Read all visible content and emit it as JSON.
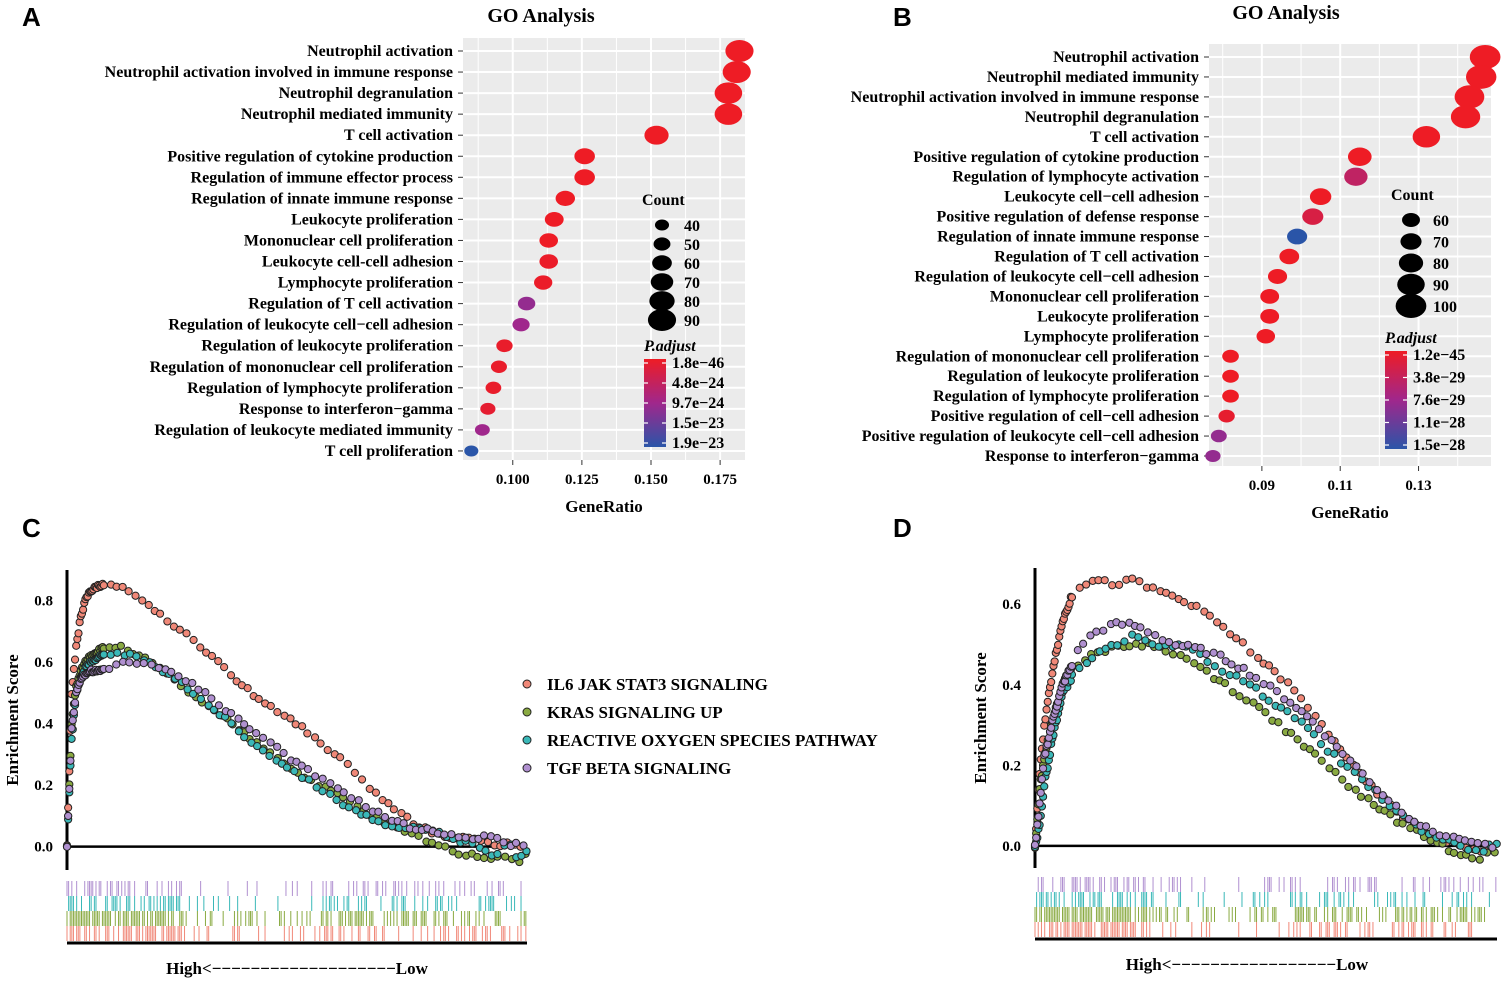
{
  "panel_letters": {
    "a": "A",
    "b": "B",
    "c": "C",
    "d": "D"
  },
  "chart_data": [
    {
      "panel": "A",
      "type": "scatter",
      "subtype": "dot plot",
      "title": "GO Analysis",
      "xlabel": "GeneRatio",
      "ylabel": "",
      "xlim": [
        0.082,
        0.184
      ],
      "xticks": [
        0.1,
        0.125,
        0.15,
        0.175
      ],
      "xtick_labels": [
        "0.100",
        "0.125",
        "0.150",
        "0.175"
      ],
      "terms": [
        {
          "label": "Neutrophil activation",
          "x": 0.182,
          "count": 90,
          "p_frac": 0.0
        },
        {
          "label": "Neutrophil activation involved in immune response",
          "x": 0.181,
          "count": 90,
          "p_frac": 0.0
        },
        {
          "label": "Neutrophil degranulation",
          "x": 0.178,
          "count": 88,
          "p_frac": 0.0
        },
        {
          "label": "Neutrophil mediated immunity",
          "x": 0.178,
          "count": 88,
          "p_frac": 0.0
        },
        {
          "label": "T cell activation",
          "x": 0.152,
          "count": 76,
          "p_frac": 0.0
        },
        {
          "label": "Positive regulation of cytokine production",
          "x": 0.126,
          "count": 63,
          "p_frac": 0.0
        },
        {
          "label": "Regulation of immune effector process",
          "x": 0.126,
          "count": 63,
          "p_frac": 0.0
        },
        {
          "label": "Regulation of innate immune response",
          "x": 0.119,
          "count": 59,
          "p_frac": 0.0
        },
        {
          "label": "Leukocyte proliferation",
          "x": 0.115,
          "count": 57,
          "p_frac": 0.0
        },
        {
          "label": "Mononuclear cell proliferation",
          "x": 0.113,
          "count": 56,
          "p_frac": 0.0
        },
        {
          "label": "Leukocyte cell-cell adhesion",
          "x": 0.113,
          "count": 56,
          "p_frac": 0.02
        },
        {
          "label": "Lymphocyte proliferation",
          "x": 0.111,
          "count": 55,
          "p_frac": 0.02
        },
        {
          "label": "Regulation of T cell activation",
          "x": 0.105,
          "count": 52,
          "p_frac": 0.55
        },
        {
          "label": "Regulation of leukocyte cell−cell adhesion",
          "x": 0.103,
          "count": 51,
          "p_frac": 0.5
        },
        {
          "label": "Regulation of leukocyte proliferation",
          "x": 0.097,
          "count": 48,
          "p_frac": 0.03
        },
        {
          "label": "Regulation of mononuclear cell proliferation",
          "x": 0.095,
          "count": 47,
          "p_frac": 0.03
        },
        {
          "label": "Regulation of lymphocyte proliferation",
          "x": 0.093,
          "count": 46,
          "p_frac": 0.03
        },
        {
          "label": "Response to interferon−gamma",
          "x": 0.091,
          "count": 44,
          "p_frac": 0.06
        },
        {
          "label": "Regulation of leukocyte mediated immunity",
          "x": 0.089,
          "count": 43,
          "p_frac": 0.5
        },
        {
          "label": "T cell proliferation",
          "x": 0.085,
          "count": 40,
          "p_frac": 1.0
        }
      ],
      "count_legend": {
        "title": "Count",
        "values": [
          40,
          50,
          60,
          70,
          80,
          90
        ],
        "labels": [
          "40",
          "50",
          "60",
          "70",
          "80",
          "90"
        ]
      },
      "color_legend": {
        "title": "P.adjust",
        "labels": [
          "1.8e−46",
          "4.8e−24",
          "9.7e−24",
          "1.5e−23",
          "1.9e−23"
        ]
      }
    },
    {
      "panel": "B",
      "type": "scatter",
      "subtype": "dot plot",
      "title": "GO Analysis",
      "xlabel": "GeneRatio",
      "ylabel": "",
      "xlim": [
        0.0765,
        0.1485
      ],
      "xticks": [
        0.09,
        0.11,
        0.13
      ],
      "xtick_labels": [
        "0.09",
        "0.11",
        "0.13"
      ],
      "terms": [
        {
          "label": "Neutrophil activation",
          "x": 0.147,
          "count": 100,
          "p_frac": 0.0
        },
        {
          "label": "Neutrophil mediated immunity",
          "x": 0.146,
          "count": 99,
          "p_frac": 0.0
        },
        {
          "label": "Neutrophil activation involved in immune response",
          "x": 0.143,
          "count": 97,
          "p_frac": 0.0
        },
        {
          "label": "Neutrophil degranulation",
          "x": 0.142,
          "count": 96,
          "p_frac": 0.0
        },
        {
          "label": "T cell activation",
          "x": 0.132,
          "count": 90,
          "p_frac": 0.0
        },
        {
          "label": "Positive regulation of cytokine production",
          "x": 0.115,
          "count": 78,
          "p_frac": 0.0
        },
        {
          "label": "Regulation of lymphocyte activation",
          "x": 0.114,
          "count": 77,
          "p_frac": 0.3
        },
        {
          "label": "Leukocyte cell−cell adhesion",
          "x": 0.105,
          "count": 71,
          "p_frac": 0.0
        },
        {
          "label": "Positive regulation of defense response",
          "x": 0.103,
          "count": 70,
          "p_frac": 0.15
        },
        {
          "label": "Regulation of innate immune response",
          "x": 0.099,
          "count": 67,
          "p_frac": 1.0
        },
        {
          "label": "Regulation of T cell activation",
          "x": 0.097,
          "count": 66,
          "p_frac": 0.0
        },
        {
          "label": "Regulation of leukocyte cell−cell adhesion",
          "x": 0.094,
          "count": 64,
          "p_frac": 0.0
        },
        {
          "label": "Mononuclear cell proliferation",
          "x": 0.092,
          "count": 63,
          "p_frac": 0.0
        },
        {
          "label": "Leukocyte proliferation",
          "x": 0.092,
          "count": 63,
          "p_frac": 0.0
        },
        {
          "label": "Lymphocyte proliferation",
          "x": 0.091,
          "count": 62,
          "p_frac": 0.0
        },
        {
          "label": "Regulation of mononuclear cell proliferation",
          "x": 0.082,
          "count": 56,
          "p_frac": 0.0
        },
        {
          "label": "Regulation of leukocyte proliferation",
          "x": 0.082,
          "count": 56,
          "p_frac": 0.0
        },
        {
          "label": "Regulation of lymphocyte proliferation",
          "x": 0.082,
          "count": 56,
          "p_frac": 0.0
        },
        {
          "label": "Positive regulation of cell−cell adhesion",
          "x": 0.081,
          "count": 55,
          "p_frac": 0.05
        },
        {
          "label": "Positive regulation of leukocyte cell−cell adhesion",
          "x": 0.079,
          "count": 54,
          "p_frac": 0.55
        },
        {
          "label": "Response to interferon−gamma",
          "x": 0.0775,
          "count": 52,
          "p_frac": 0.55
        }
      ],
      "count_legend": {
        "title": "Count",
        "values": [
          60,
          70,
          80,
          90,
          100
        ],
        "labels": [
          "60",
          "70",
          "80",
          "90",
          "100"
        ]
      },
      "color_legend": {
        "title": "P.adjust",
        "labels": [
          "1.2e−45",
          "3.8e−29",
          "7.6e−29",
          "1.1e−28",
          "1.5e−28"
        ]
      }
    },
    {
      "panel": "C",
      "type": "line",
      "subtype": "GSEA enrichment score",
      "title": "",
      "xlabel": "High<−−−−−−−−−−−−−−−−−−−Low",
      "ylabel": "Enrichment Score",
      "xlim": [
        0,
        100
      ],
      "ylim": [
        -0.05,
        0.9
      ],
      "yticks": [
        0.0,
        0.2,
        0.4,
        0.6,
        0.8
      ],
      "ytick_labels": [
        "0.0",
        "0.2",
        "0.4",
        "0.6",
        "0.8"
      ],
      "x": [
        0,
        1,
        2,
        3,
        4,
        5,
        7,
        9,
        12,
        16,
        20,
        25,
        30,
        35,
        40,
        45,
        50,
        55,
        60,
        65,
        70,
        75,
        80,
        85,
        90,
        93,
        96,
        98,
        100
      ],
      "series": [
        {
          "name": "IL6 JAK STAT3 SIGNALING",
          "color": "#f08878",
          "values": [
            0.0,
            0.5,
            0.65,
            0.75,
            0.8,
            0.83,
            0.85,
            0.85,
            0.84,
            0.8,
            0.76,
            0.7,
            0.64,
            0.57,
            0.5,
            0.45,
            0.4,
            0.34,
            0.28,
            0.2,
            0.14,
            0.08,
            0.04,
            0.03,
            0.02,
            0.0,
            0.01,
            0.0,
            -0.02
          ]
        },
        {
          "name": "KRAS SIGNALING UP",
          "color": "#8aaa42",
          "values": [
            0.0,
            0.4,
            0.52,
            0.57,
            0.6,
            0.62,
            0.64,
            0.65,
            0.65,
            0.62,
            0.58,
            0.52,
            0.46,
            0.41,
            0.35,
            0.3,
            0.24,
            0.2,
            0.16,
            0.11,
            0.07,
            0.04,
            0.01,
            -0.02,
            -0.03,
            -0.04,
            -0.03,
            -0.05,
            -0.02
          ]
        },
        {
          "name": "REACTIVE OXYGEN SPECIES PATHWAY",
          "color": "#3ab8b8",
          "values": [
            0.0,
            0.35,
            0.5,
            0.55,
            0.58,
            0.6,
            0.62,
            0.62,
            0.63,
            0.61,
            0.58,
            0.53,
            0.47,
            0.41,
            0.34,
            0.29,
            0.24,
            0.19,
            0.14,
            0.1,
            0.06,
            0.06,
            0.05,
            0.02,
            0.0,
            -0.03,
            0.02,
            -0.05,
            -0.01
          ]
        },
        {
          "name": "TGF BETA SIGNALING",
          "color": "#b090d0",
          "values": [
            0.0,
            0.38,
            0.5,
            0.55,
            0.56,
            0.57,
            0.57,
            0.58,
            0.6,
            0.6,
            0.58,
            0.55,
            0.5,
            0.44,
            0.38,
            0.33,
            0.27,
            0.22,
            0.18,
            0.13,
            0.09,
            0.06,
            0.05,
            0.03,
            0.03,
            0.04,
            -0.01,
            0.02,
            0.0
          ]
        }
      ]
    },
    {
      "panel": "D",
      "type": "line",
      "subtype": "GSEA enrichment score",
      "title": "",
      "xlabel": "High<−−−−−−−−−−−−−−−−−Low",
      "ylabel": "Enrichment Score",
      "xlim": [
        0,
        100
      ],
      "ylim": [
        -0.04,
        0.69
      ],
      "yticks": [
        0.0,
        0.2,
        0.4,
        0.6
      ],
      "ytick_labels": [
        "0.0",
        "0.2",
        "0.4",
        "0.6"
      ],
      "x": [
        0,
        1,
        2,
        4,
        6,
        8,
        10,
        13,
        17,
        21,
        25,
        30,
        35,
        40,
        45,
        50,
        55,
        60,
        65,
        70,
        75,
        80,
        85,
        90,
        93,
        96,
        98,
        100
      ],
      "series": [
        {
          "name": "IL6 JAK STAT3 SIGNALING",
          "color": "#f08878",
          "values": [
            0.0,
            0.18,
            0.3,
            0.45,
            0.56,
            0.62,
            0.65,
            0.66,
            0.65,
            0.66,
            0.64,
            0.62,
            0.59,
            0.55,
            0.5,
            0.45,
            0.4,
            0.33,
            0.26,
            0.18,
            0.12,
            0.07,
            0.03,
            0.01,
            0.0,
            -0.02,
            0.0,
            0.0
          ]
        },
        {
          "name": "KRAS SIGNALING UP",
          "color": "#8aaa42",
          "values": [
            0.0,
            0.14,
            0.22,
            0.32,
            0.4,
            0.44,
            0.46,
            0.48,
            0.49,
            0.5,
            0.5,
            0.48,
            0.45,
            0.41,
            0.37,
            0.33,
            0.28,
            0.23,
            0.18,
            0.13,
            0.09,
            0.05,
            0.02,
            -0.01,
            -0.02,
            -0.03,
            -0.02,
            -0.02
          ]
        },
        {
          "name": "REACTIVE OXYGEN SPECIES PATHWAY",
          "color": "#3ab8b8",
          "values": [
            0.0,
            0.05,
            0.15,
            0.28,
            0.38,
            0.42,
            0.45,
            0.47,
            0.5,
            0.52,
            0.5,
            0.5,
            0.48,
            0.44,
            0.41,
            0.37,
            0.33,
            0.28,
            0.22,
            0.17,
            0.12,
            0.07,
            0.03,
            0.01,
            0.0,
            -0.02,
            0.0,
            0.0
          ]
        },
        {
          "name": "TGF BETA SIGNALING",
          "color": "#b090d0",
          "values": [
            0.0,
            0.1,
            0.22,
            0.32,
            0.4,
            0.45,
            0.5,
            0.53,
            0.55,
            0.55,
            0.53,
            0.5,
            0.49,
            0.47,
            0.44,
            0.4,
            0.36,
            0.31,
            0.25,
            0.19,
            0.13,
            0.08,
            0.04,
            0.02,
            0.02,
            0.0,
            0.0,
            0.0
          ]
        }
      ]
    }
  ],
  "gsea_legend": {
    "items": [
      {
        "label": "IL6 JAK STAT3 SIGNALING",
        "color": "#f08878"
      },
      {
        "label": "KRAS SIGNALING UP",
        "color": "#8aaa42"
      },
      {
        "label": "REACTIVE OXYGEN SPECIES PATHWAY",
        "color": "#3ab8b8"
      },
      {
        "label": "TGF BETA SIGNALING",
        "color": "#b090d0"
      }
    ]
  },
  "colors": {
    "dot_high": "#ee1c25",
    "dot_mid": "#a0278c",
    "dot_low": "#2a55a8",
    "panel_bg": "#ebebeb"
  }
}
